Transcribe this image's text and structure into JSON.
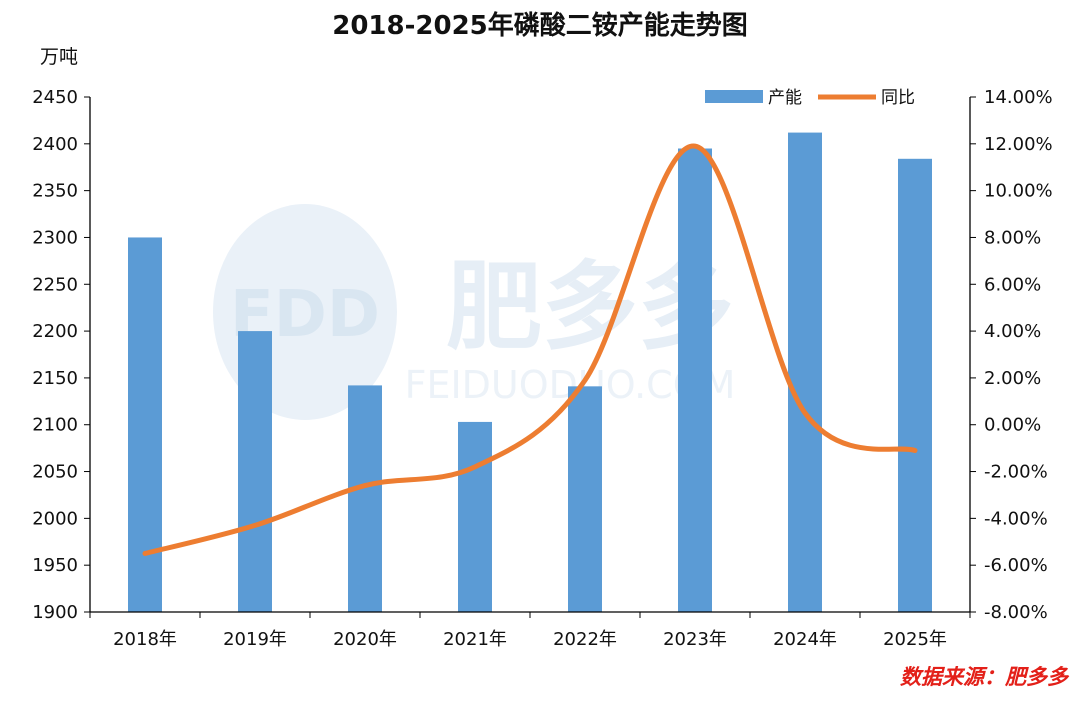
{
  "watermark": {
    "logo": "FDD",
    "cn": "肥多多",
    "url": "FEIDUODUO.COM"
  },
  "source": "数据来源：肥多多",
  "chart_data": {
    "type": "bar+line",
    "title": "2018-2025年磷酸二铵产能走势图",
    "y_left_label": "万吨",
    "categories": [
      "2018年",
      "2019年",
      "2020年",
      "2021年",
      "2022年",
      "2023年",
      "2024年",
      "2025年"
    ],
    "series": [
      {
        "name": "产能",
        "type": "bar",
        "axis": "left",
        "values": [
          2300,
          2200,
          2142,
          2103,
          2141,
          2395,
          2412,
          2384
        ]
      },
      {
        "name": "同比",
        "type": "line",
        "axis": "right",
        "smooth": true,
        "values": [
          -5.5,
          -4.3,
          -2.6,
          -1.8,
          1.9,
          11.9,
          0.5,
          -1.1
        ]
      }
    ],
    "y_left": {
      "min": 1900,
      "max": 2450,
      "step": 50,
      "ticks": [
        "1900",
        "1950",
        "2000",
        "2050",
        "2100",
        "2150",
        "2200",
        "2250",
        "2300",
        "2350",
        "2400",
        "2450"
      ]
    },
    "y_right": {
      "min": -8,
      "max": 14,
      "step": 2,
      "ticks": [
        "-8.00%",
        "-6.00%",
        "-4.00%",
        "-2.00%",
        "0.00%",
        "2.00%",
        "4.00%",
        "6.00%",
        "8.00%",
        "10.00%",
        "12.00%",
        "14.00%"
      ]
    },
    "legend": {
      "position": "top-right",
      "items": [
        "产能",
        "同比"
      ]
    },
    "colors": {
      "bar": "#5b9bd5",
      "line": "#ed7d31",
      "axis": "#000000"
    }
  }
}
